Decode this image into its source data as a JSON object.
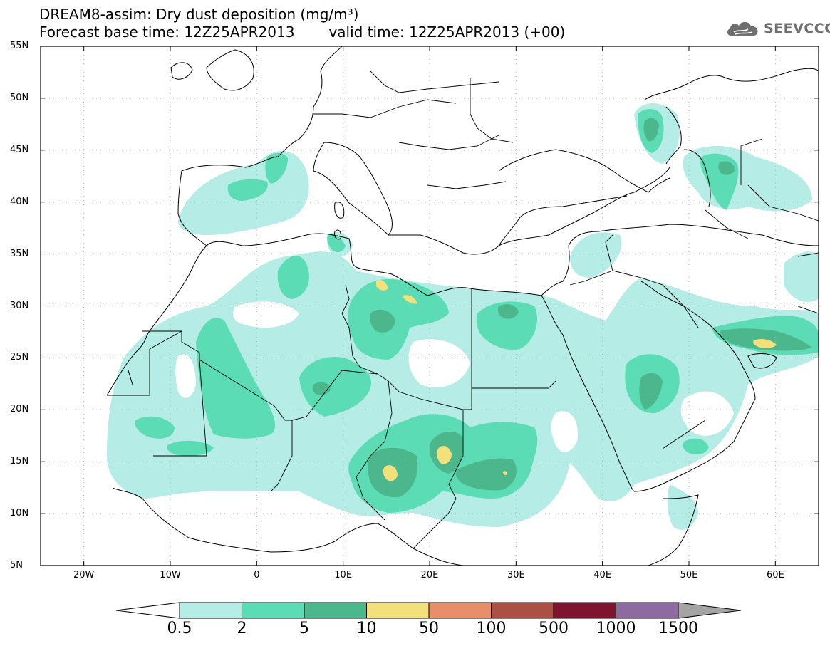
{
  "title": {
    "line1": "DREAM8-assim: Dry dust deposition (mg/m³)",
    "base_label": "Forecast base time: 12Z25APR2013",
    "valid_label": "valid time: 12Z25APR2013 (+00)"
  },
  "logo": {
    "text": "SEEVCCC",
    "icon": "cloud-icon"
  },
  "map": {
    "lon_range": [
      -25,
      65
    ],
    "lat_range": [
      5,
      55
    ],
    "lat_ticks": [
      {
        "value": 55,
        "label": "55N"
      },
      {
        "value": 50,
        "label": "50N"
      },
      {
        "value": 45,
        "label": "45N"
      },
      {
        "value": 40,
        "label": "40N"
      },
      {
        "value": 35,
        "label": "35N"
      },
      {
        "value": 30,
        "label": "30N"
      },
      {
        "value": 25,
        "label": "25N"
      },
      {
        "value": 20,
        "label": "20N"
      },
      {
        "value": 15,
        "label": "15N"
      },
      {
        "value": 10,
        "label": "10N"
      },
      {
        "value": 5,
        "label": "5N"
      }
    ],
    "lon_ticks": [
      {
        "value": -20,
        "label": "20W"
      },
      {
        "value": -10,
        "label": "10W"
      },
      {
        "value": 0,
        "label": "0"
      },
      {
        "value": 10,
        "label": "10E"
      },
      {
        "value": 20,
        "label": "20E"
      },
      {
        "value": 30,
        "label": "30E"
      },
      {
        "value": 40,
        "label": "40E"
      },
      {
        "value": 50,
        "label": "50E"
      },
      {
        "value": 60,
        "label": "60E"
      }
    ],
    "grid": "dotted"
  },
  "colorbar": {
    "levels": [
      "0.5",
      "2",
      "5",
      "10",
      "50",
      "100",
      "500",
      "1000",
      "1500"
    ],
    "colors": [
      "#ffffff",
      "#b5ede6",
      "#5cdcb4",
      "#4cb68c",
      "#f2e07a",
      "#e88e68",
      "#ad5044",
      "#7e1430",
      "#8d6aa0",
      "#a4a4a4"
    ]
  }
}
